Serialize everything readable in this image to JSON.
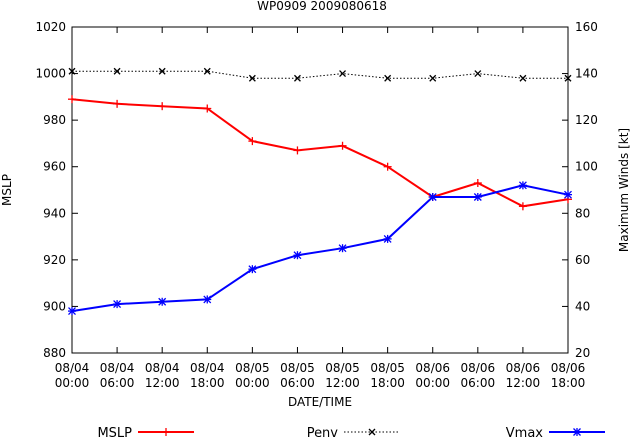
{
  "chart_data": {
    "type": "line",
    "title": "WP0909 2009080618",
    "xlabel": "DATE/TIME",
    "ylabel": "MSLP",
    "y2label": "Maximum Winds [kt]",
    "ylim": [
      880,
      1020
    ],
    "y2lim": [
      20,
      160
    ],
    "yticks": [
      880,
      900,
      920,
      940,
      960,
      980,
      1000,
      1020
    ],
    "y2ticks": [
      20,
      40,
      60,
      80,
      100,
      120,
      140,
      160
    ],
    "categories": [
      [
        "08/04",
        "00:00"
      ],
      [
        "08/04",
        "06:00"
      ],
      [
        "08/04",
        "12:00"
      ],
      [
        "08/04",
        "18:00"
      ],
      [
        "08/05",
        "00:00"
      ],
      [
        "08/05",
        "06:00"
      ],
      [
        "08/05",
        "12:00"
      ],
      [
        "08/05",
        "18:00"
      ],
      [
        "08/06",
        "00:00"
      ],
      [
        "08/06",
        "06:00"
      ],
      [
        "08/06",
        "12:00"
      ],
      [
        "08/06",
        "18:00"
      ]
    ],
    "series": [
      {
        "name": "MSLP",
        "axis": "left",
        "color": "#ff0000",
        "marker": "plus",
        "dash": "solid",
        "values": [
          989,
          987,
          986,
          985,
          971,
          967,
          969,
          960,
          947,
          953,
          943,
          946
        ]
      },
      {
        "name": "Penv",
        "axis": "left",
        "color": "#000000",
        "marker": "x",
        "dash": "dotted",
        "values": [
          1001,
          1001,
          1001,
          1001,
          998,
          998,
          1000,
          998,
          998,
          1000,
          998,
          998
        ]
      },
      {
        "name": "Vmax",
        "axis": "right",
        "color": "#0000ff",
        "marker": "star",
        "dash": "solid",
        "values": [
          38,
          41,
          42,
          43,
          56,
          62,
          65,
          69,
          87,
          87,
          92,
          88
        ]
      }
    ],
    "legend_position": "bottom",
    "grid": false
  }
}
